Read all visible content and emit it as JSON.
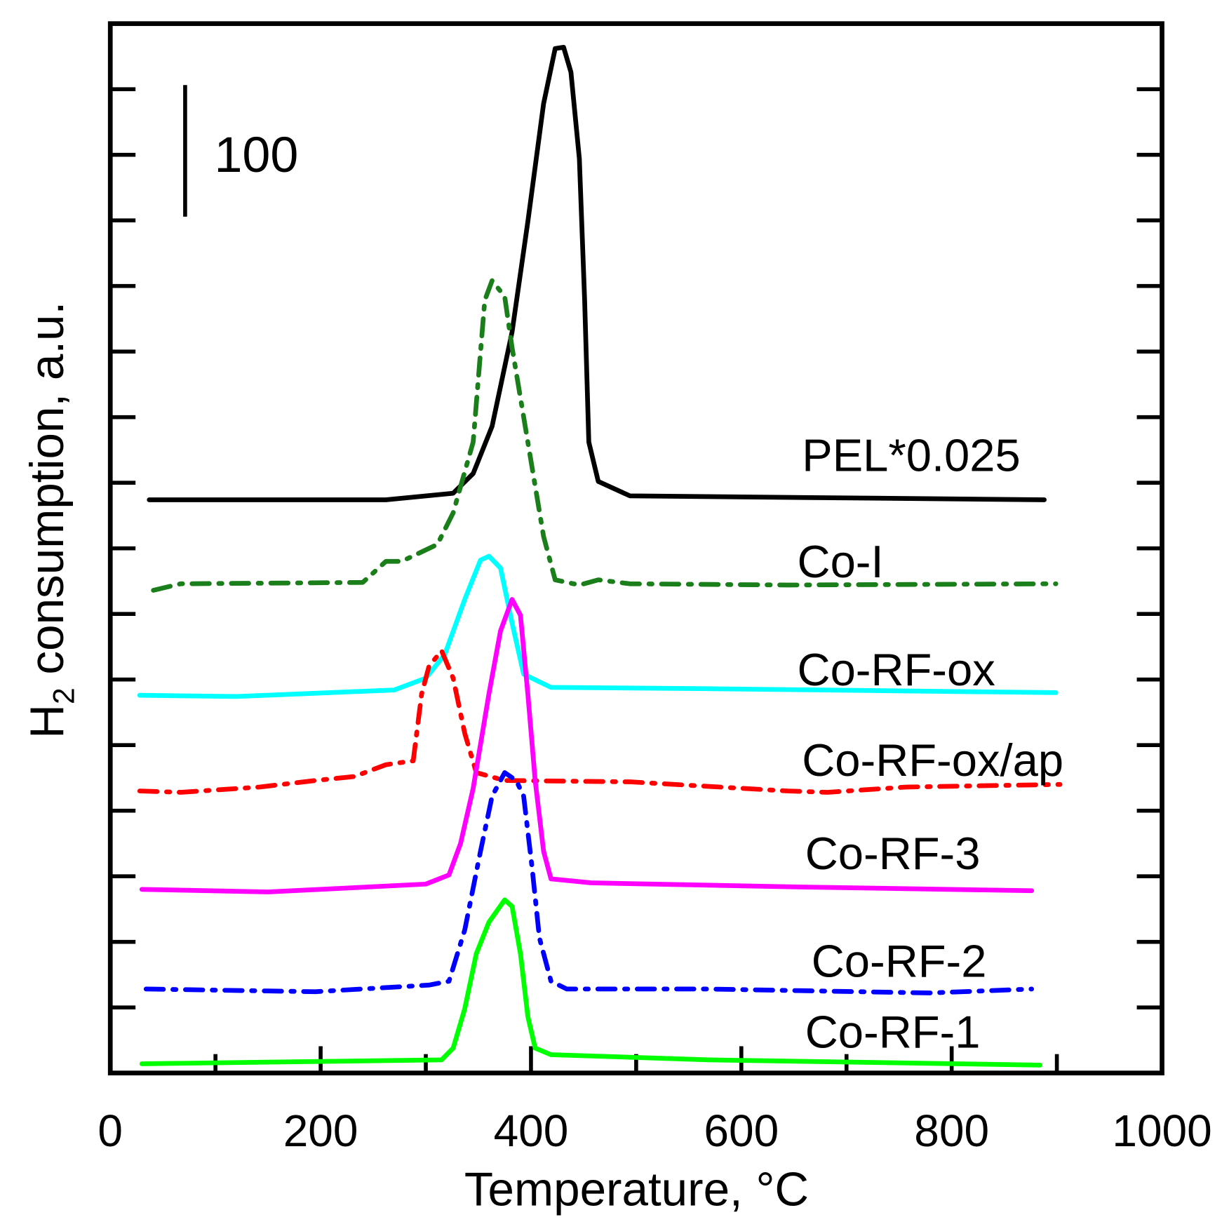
{
  "chart_data": {
    "type": "line",
    "xlabel": "Temperature, °C",
    "ylabel_main": "H",
    "ylabel_sub": "2",
    "ylabel_rest": " consumption, a.u.",
    "xlim": [
      0,
      1000
    ],
    "ylim": [
      0,
      800
    ],
    "xticks": [
      0,
      200,
      400,
      600,
      800,
      1000
    ],
    "xtick_labels": [
      "0",
      "200",
      "400",
      "600",
      "800",
      "1000"
    ],
    "scale_bar": {
      "label": "100",
      "value": 100
    },
    "grid": false,
    "series": [
      {
        "name": "PEL*0.025",
        "color": "#000000",
        "dash": "solid",
        "x": [
          37,
          262,
          326,
          345,
          363,
          382,
          397,
          412,
          423,
          431,
          438,
          446,
          451,
          455,
          464,
          494,
          888
        ],
        "y": [
          437,
          437,
          442,
          457,
          493,
          565,
          649,
          739,
          781,
          782,
          763,
          697,
          589,
          481,
          451,
          440,
          437
        ]
      },
      {
        "name": "Co-I",
        "color": "#1a7f1a",
        "dash": "dashdot",
        "x": [
          41,
          67,
          240,
          262,
          277,
          311,
          326,
          345,
          356,
          363,
          375,
          382,
          397,
          412,
          423,
          446,
          464,
          494,
          644,
          899
        ],
        "y": [
          368,
          373,
          374,
          390,
          390,
          403,
          427,
          481,
          589,
          604,
          592,
          553,
          481,
          409,
          376,
          372,
          376,
          373,
          372,
          373
        ]
      },
      {
        "name": "Co-RF-ox",
        "color": "#00ffff",
        "dash": "solid",
        "x": [
          28,
          120,
          270,
          300,
          318,
          337,
          352,
          360,
          371,
          382,
          393,
          419,
          569,
          899
        ],
        "y": [
          288,
          287,
          292,
          301,
          319,
          361,
          391,
          394,
          385,
          343,
          304,
          294,
          293,
          290
        ]
      },
      {
        "name": "Co-RF-ox/ap",
        "color": "#ff0000",
        "dash": "dashdot",
        "x": [
          28,
          67,
          142,
          195,
          232,
          262,
          288,
          296,
          303,
          315,
          326,
          337,
          348,
          375,
          494,
          644,
          682,
          757,
          903
        ],
        "y": [
          215,
          214,
          218,
          223,
          226,
          235,
          238,
          289,
          310,
          322,
          301,
          259,
          229,
          223,
          222,
          215,
          214,
          218,
          220
        ]
      },
      {
        "name": "Co-RF-3",
        "color": "#ff00ff",
        "dash": "solid",
        "x": [
          30,
          150,
          300,
          322,
          333,
          345,
          360,
          371,
          382,
          390,
          397,
          404,
          412,
          419,
          457,
          644,
          876
        ],
        "y": [
          140,
          138,
          144,
          151,
          175,
          217,
          289,
          337,
          361,
          349,
          289,
          223,
          169,
          148,
          145,
          142,
          139
        ]
      },
      {
        "name": "Co-RF-2",
        "color": "#0000ff",
        "dash": "dashdot",
        "x": [
          34,
          195,
          303,
          322,
          337,
          352,
          363,
          375,
          386,
          393,
          401,
          408,
          419,
          434,
          569,
          779,
          876
        ],
        "y": [
          64,
          62,
          67,
          70,
          109,
          169,
          211,
          229,
          223,
          211,
          157,
          103,
          70,
          64,
          64,
          61,
          64
        ]
      },
      {
        "name": "Co-RF-1",
        "color": "#00ff00",
        "dash": "solid",
        "x": [
          30,
          315,
          326,
          337,
          348,
          360,
          375,
          382,
          390,
          397,
          404,
          419,
          569,
          884
        ],
        "y": [
          7,
          10,
          19,
          49,
          91,
          115,
          132,
          127,
          91,
          43,
          19,
          14,
          10,
          6
        ]
      }
    ]
  }
}
